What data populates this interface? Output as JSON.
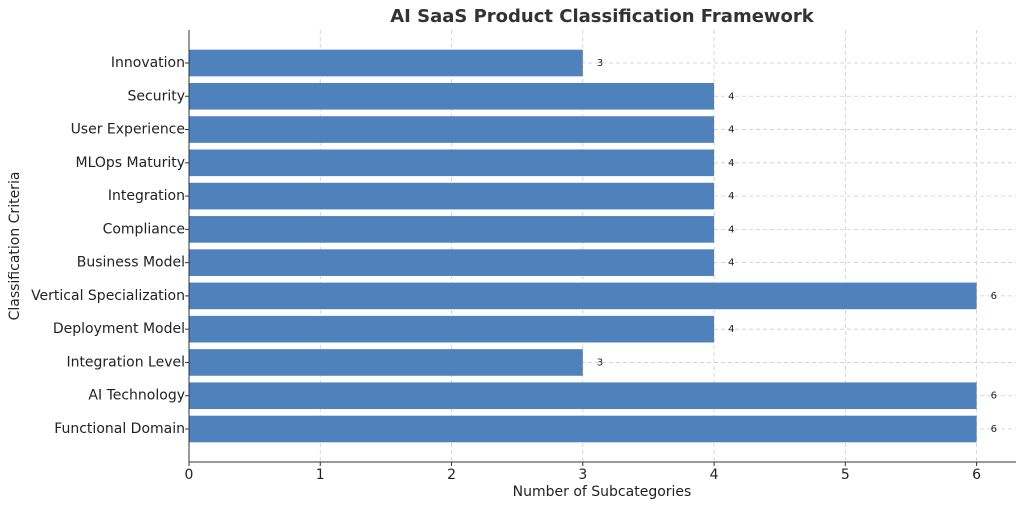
{
  "chart_data": {
    "type": "barh",
    "title": "AI SaaS Product Classification Framework",
    "x_label": "Number of Subcategories",
    "y_label": "Classification Criteria",
    "categories": [
      "Functional Domain",
      "AI Technology",
      "Integration Level",
      "Deployment Model",
      "Vertical Specialization",
      "Business Model",
      "Compliance",
      "Integration",
      "MLOps Maturity",
      "User Experience",
      "Security",
      "Innovation"
    ],
    "values": [
      6,
      6,
      3,
      4,
      6,
      4,
      4,
      4,
      4,
      4,
      4,
      3
    ],
    "color": "#4f81bd",
    "xlim": [
      0,
      6.3
    ],
    "xticks": [
      0,
      1,
      2,
      3,
      4,
      5,
      6
    ],
    "grid": true
  }
}
